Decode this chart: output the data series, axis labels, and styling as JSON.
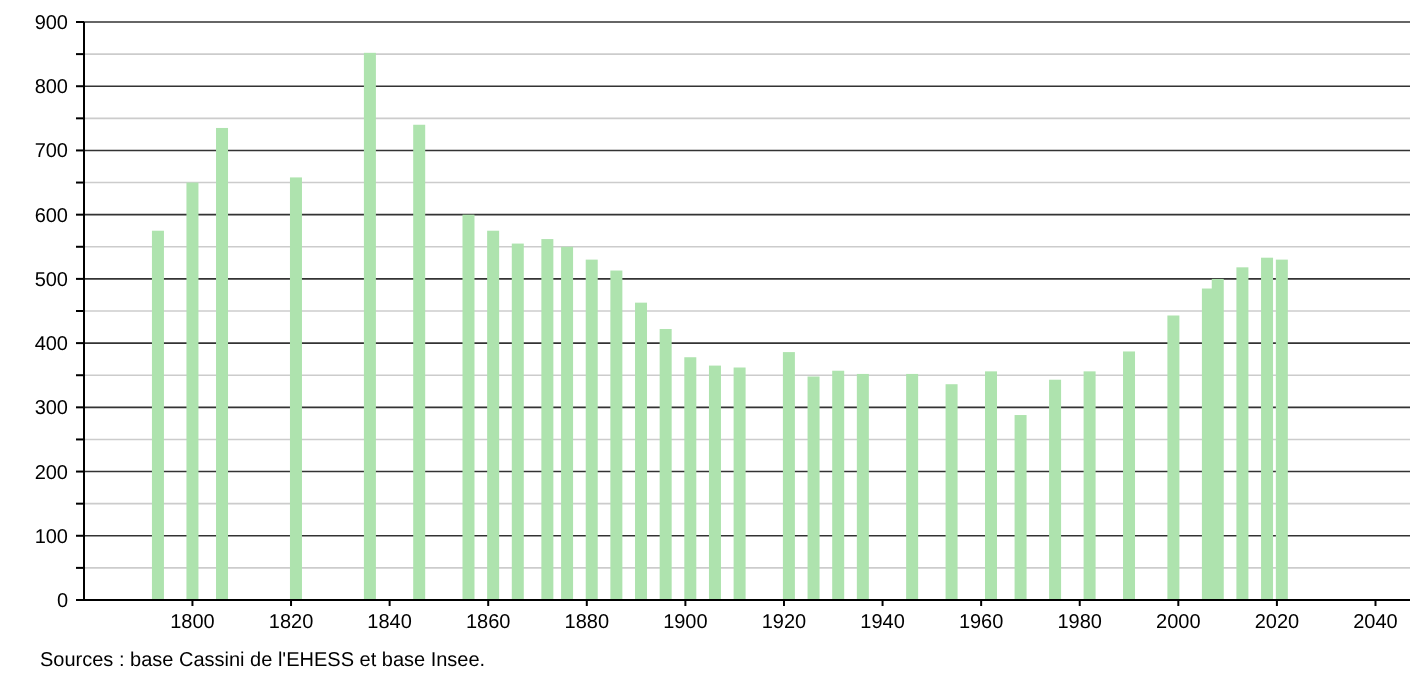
{
  "chart_data": {
    "type": "bar",
    "color": "#aee3ae",
    "x": [
      1793,
      1800,
      1806,
      1821,
      1836,
      1846,
      1856,
      1861,
      1866,
      1872,
      1876,
      1881,
      1886,
      1891,
      1896,
      1901,
      1906,
      1911,
      1921,
      1926,
      1931,
      1936,
      1946,
      1954,
      1962,
      1968,
      1975,
      1982,
      1990,
      1999,
      2006,
      2008,
      2013,
      2018,
      2021
    ],
    "values": [
      575,
      650,
      735,
      658,
      852,
      740,
      600,
      575,
      555,
      562,
      550,
      530,
      513,
      463,
      422,
      378,
      365,
      362,
      386,
      348,
      357,
      352,
      352,
      336,
      356,
      288,
      343,
      356,
      387,
      443,
      485,
      500,
      518,
      533,
      530
    ],
    "xlim": [
      1778,
      2047
    ],
    "xticks": [
      1800,
      1820,
      1840,
      1860,
      1880,
      1900,
      1920,
      1940,
      1960,
      1980,
      2000,
      2020,
      2040
    ],
    "ylim": [
      0,
      900
    ],
    "yticks": [
      0,
      {
        "value": 50,
        "label": null
      },
      100,
      {
        "value": 150,
        "label": null
      },
      200,
      {
        "value": 250,
        "label": null
      },
      300,
      {
        "value": 350,
        "label": null
      },
      400,
      {
        "value": 450,
        "label": null
      },
      500,
      {
        "value": 550,
        "label": null
      },
      600,
      {
        "value": 650,
        "label": null
      },
      700,
      {
        "value": 750,
        "label": null
      },
      800,
      {
        "value": 850,
        "label": null
      },
      900
    ],
    "grid": true,
    "annotations": [
      "Sources : base Cassini de l'EHESS et base Insee."
    ]
  }
}
